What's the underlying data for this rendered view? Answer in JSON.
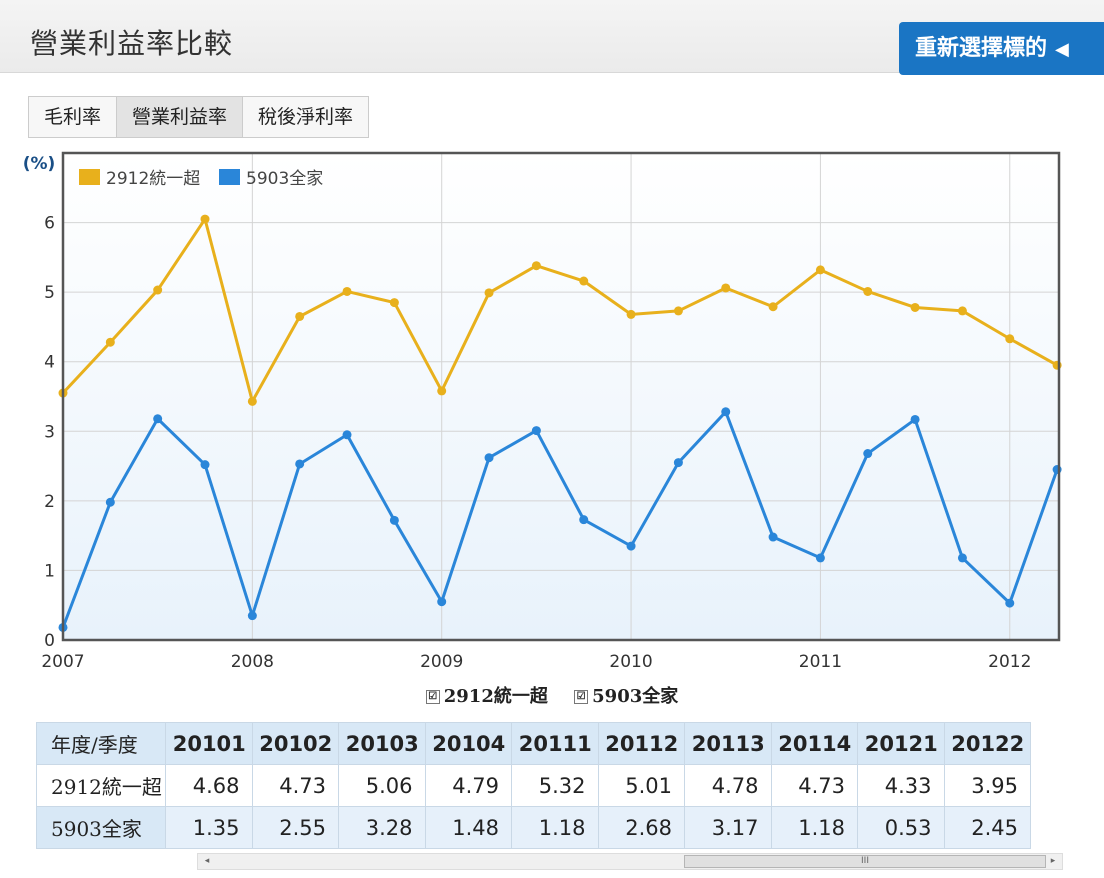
{
  "header": {
    "title": "營業利益率比較",
    "reselect_label": "重新選擇標的",
    "reselect_arrow": "◀"
  },
  "tabs": [
    {
      "label": "毛利率",
      "active": false
    },
    {
      "label": "營業利益率",
      "active": true
    },
    {
      "label": "稅後淨利率",
      "active": false
    }
  ],
  "colors": {
    "series1": "#e8b01c",
    "series2": "#2a86d9",
    "accent": "#1a75c4",
    "frame": "#555555"
  },
  "chart_data": {
    "type": "line",
    "ylabel": "(%)",
    "ylim": [
      0,
      7
    ],
    "yticks": [
      0,
      1,
      2,
      3,
      4,
      5,
      6
    ],
    "xlim": [
      2007,
      2012.26
    ],
    "xticks": [
      2007,
      2008,
      2009,
      2010,
      2011,
      2012
    ],
    "grid": true,
    "legend": "top-left",
    "x": [
      2007.0,
      2007.25,
      2007.5,
      2007.75,
      2008.0,
      2008.25,
      2008.5,
      2008.75,
      2009.0,
      2009.25,
      2009.5,
      2009.75,
      2010.0,
      2010.25,
      2010.5,
      2010.75,
      2011.0,
      2011.25,
      2011.5,
      2011.75,
      2012.0,
      2012.25
    ],
    "series": [
      {
        "name": "2912統一超",
        "values": [
          3.55,
          4.28,
          5.03,
          6.05,
          3.43,
          4.65,
          5.01,
          4.85,
          3.58,
          4.99,
          5.38,
          5.16,
          4.68,
          4.73,
          5.06,
          4.79,
          5.32,
          5.01,
          4.78,
          4.73,
          4.33,
          3.95
        ]
      },
      {
        "name": "5903全家",
        "values": [
          0.18,
          1.98,
          3.18,
          2.52,
          0.35,
          2.53,
          2.95,
          1.72,
          0.55,
          2.62,
          3.01,
          1.73,
          1.35,
          2.55,
          3.28,
          1.48,
          1.18,
          2.68,
          3.17,
          1.18,
          0.53,
          2.45
        ]
      }
    ]
  },
  "bottom_legend": [
    {
      "label": "2912統一超",
      "check": "☑"
    },
    {
      "label": "5903全家",
      "check": "☑"
    }
  ],
  "table": {
    "left_header": "年度/季度",
    "row_labels": [
      "2912統一超",
      "5903全家"
    ],
    "columns": [
      "20101",
      "20102",
      "20103",
      "20104",
      "20111",
      "20112",
      "20113",
      "20114",
      "20121",
      "20122"
    ],
    "rows": [
      [
        "4.68",
        "4.73",
        "5.06",
        "4.79",
        "5.32",
        "5.01",
        "4.78",
        "4.73",
        "4.33",
        "3.95"
      ],
      [
        "1.35",
        "2.55",
        "3.28",
        "1.48",
        "1.18",
        "2.68",
        "3.17",
        "1.18",
        "0.53",
        "2.45"
      ]
    ]
  },
  "scrollbar": {
    "left": "◂",
    "right": "▸",
    "grip": "III"
  }
}
